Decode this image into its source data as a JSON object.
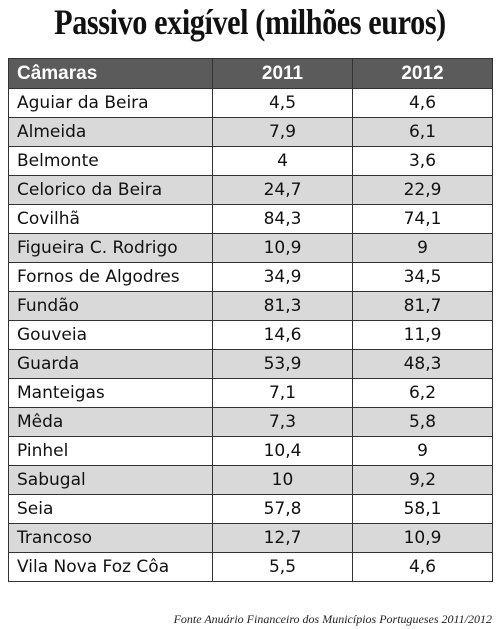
{
  "title": "Passivo exigível (milhões euros)",
  "chart_data": {
    "type": "table",
    "title": "Passivo exigível (milhões euros)",
    "columns": [
      "Câmaras",
      "2011",
      "2012"
    ],
    "rows": [
      {
        "name": "Aguiar da Beira",
        "v2011": "4,5",
        "v2012": "4,6",
        "shaded": false
      },
      {
        "name": "Almeida",
        "v2011": "7,9",
        "v2012": "6,1",
        "shaded": true
      },
      {
        "name": "Belmonte",
        "v2011": "4",
        "v2012": "3,6",
        "shaded": false
      },
      {
        "name": "Celorico da Beira",
        "v2011": "24,7",
        "v2012": "22,9",
        "shaded": true
      },
      {
        "name": "Covilhã",
        "v2011": "84,3",
        "v2012": "74,1",
        "shaded": false
      },
      {
        "name": "Figueira C. Rodrigo",
        "v2011": "10,9",
        "v2012": "9",
        "shaded": true
      },
      {
        "name": "Fornos de Algodres",
        "v2011": "34,9",
        "v2012": "34,5",
        "shaded": false
      },
      {
        "name": "Fundão",
        "v2011": "81,3",
        "v2012": "81,7",
        "shaded": true
      },
      {
        "name": "Gouveia",
        "v2011": "14,6",
        "v2012": "11,9",
        "shaded": false
      },
      {
        "name": "Guarda",
        "v2011": "53,9",
        "v2012": "48,3",
        "shaded": true
      },
      {
        "name": "Manteigas",
        "v2011": "7,1",
        "v2012": "6,2",
        "shaded": false
      },
      {
        "name": "Mêda",
        "v2011": "7,3",
        "v2012": "5,8",
        "shaded": true
      },
      {
        "name": "Pinhel",
        "v2011": "10,4",
        "v2012": "9",
        "shaded": false
      },
      {
        "name": "Sabugal",
        "v2011": "10",
        "v2012": "9,2",
        "shaded": true
      },
      {
        "name": "Seia",
        "v2011": "57,8",
        "v2012": "58,1",
        "shaded": false
      },
      {
        "name": "Trancoso",
        "v2011": "12,7",
        "v2012": "10,9",
        "shaded": true
      },
      {
        "name": "Vila Nova Foz Côa",
        "v2011": "5,5",
        "v2012": "4,6",
        "shaded": false
      }
    ]
  },
  "source": "Fonte Anuário Financeiro dos Municípios Portugueses 2011/2012",
  "colors": {
    "header_bg": "#5b5b5b",
    "shaded_row": "#d9d9d9"
  }
}
